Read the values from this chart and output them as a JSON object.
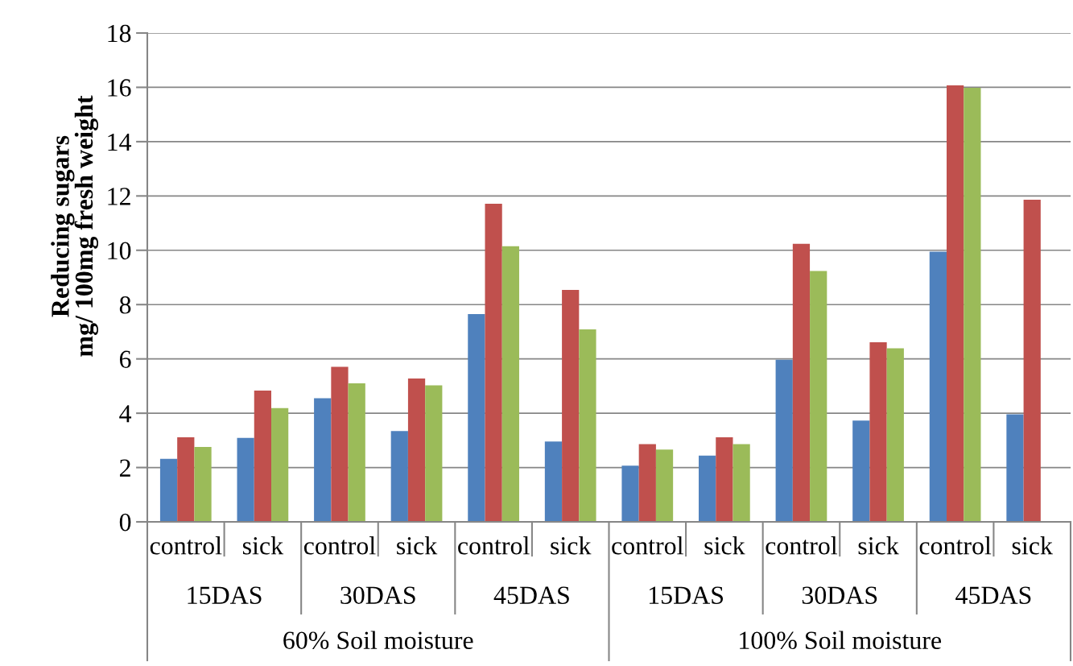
{
  "chart_data": {
    "type": "bar",
    "ylabel": "Reducing sugars\nmg/ 100mg fresh weight",
    "categories": [
      "control",
      "sick",
      "control",
      "sick",
      "control",
      "sick",
      "control",
      "sick",
      "control",
      "sick",
      "control",
      "sick"
    ],
    "series": [
      {
        "color": "#4f81bd",
        "values": [
          2.32,
          3.09,
          4.55,
          3.34,
          7.65,
          2.96,
          2.07,
          2.44,
          5.97,
          3.73,
          9.95,
          3.96
        ]
      },
      {
        "color": "#c0504d",
        "values": [
          3.11,
          4.83,
          5.71,
          5.28,
          11.71,
          8.54,
          2.86,
          3.11,
          10.24,
          6.61,
          16.07,
          11.86
        ]
      },
      {
        "color": "#9bbb59",
        "values": [
          2.76,
          4.19,
          5.1,
          5.03,
          10.15,
          7.09,
          2.66,
          2.86,
          9.24,
          6.39,
          15.98,
          null
        ]
      }
    ],
    "annotations": [
      "15DAS",
      "30DAS",
      "45DAS",
      "15DAS",
      "30DAS",
      "45DAS",
      "60% Soil moisture",
      "100% Soil moisture"
    ],
    "ylim": [
      0,
      18
    ],
    "yticks": [
      0,
      2,
      4,
      6,
      8,
      10,
      12,
      14,
      16,
      18
    ],
    "grid": "y"
  }
}
